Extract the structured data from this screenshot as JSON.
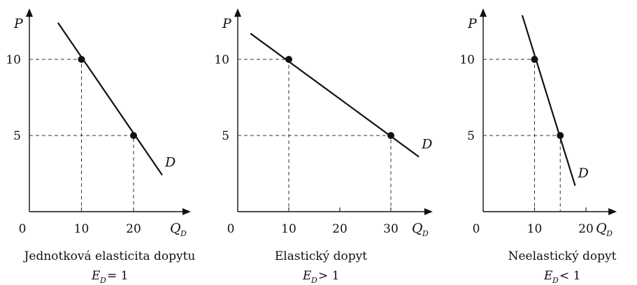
{
  "chart_data": [
    {
      "type": "line",
      "title": "Jednotková elasticita dopytu",
      "formula": {
        "symbol": "E",
        "subscript": "D",
        "relation": "= 1"
      },
      "ylabel": "P",
      "xlabel": {
        "symbol": "Q",
        "subscript": "D"
      },
      "origin_label": "0",
      "xticks": [
        {
          "value": 10,
          "label": "10"
        },
        {
          "value": 20,
          "label": "20"
        }
      ],
      "yticks": [
        {
          "value": 5,
          "label": "5"
        },
        {
          "value": 10,
          "label": "10"
        }
      ],
      "xlim": [
        0,
        31
      ],
      "ylim": [
        0,
        13
      ],
      "series": [
        {
          "name": "D",
          "line": [
            [
              5.5,
              12.4
            ],
            [
              25.5,
              2.4
            ]
          ]
        }
      ],
      "points": [
        [
          10,
          10
        ],
        [
          20,
          5
        ]
      ]
    },
    {
      "type": "line",
      "title": "Elastický dopyt",
      "formula": {
        "symbol": "E",
        "subscript": "D",
        "relation": "> 1"
      },
      "ylabel": "P",
      "xlabel": {
        "symbol": "Q",
        "subscript": "D"
      },
      "origin_label": "0",
      "xticks": [
        {
          "value": 10,
          "label": "10"
        },
        {
          "value": 20,
          "label": "20"
        },
        {
          "value": 30,
          "label": "30"
        }
      ],
      "yticks": [
        {
          "value": 5,
          "label": "5"
        },
        {
          "value": 10,
          "label": "10"
        }
      ],
      "xlim": [
        0,
        38.2
      ],
      "ylim": [
        0,
        13
      ],
      "series": [
        {
          "name": "D",
          "line": [
            [
              2.5,
              11.7
            ],
            [
              35.5,
              3.6
            ]
          ]
        }
      ],
      "points": [
        [
          10,
          10
        ],
        [
          30,
          5
        ]
      ]
    },
    {
      "type": "line",
      "title": "Neelastický dopyt",
      "formula": {
        "symbol": "E",
        "subscript": "D",
        "relation": "< 1"
      },
      "ylabel": "P",
      "xlabel": {
        "symbol": "Q",
        "subscript": "D"
      },
      "origin_label": "0",
      "xticks": [
        {
          "value": 10,
          "label": "10"
        },
        {
          "value": 20,
          "label": "20"
        }
      ],
      "yticks": [
        {
          "value": 5,
          "label": "5"
        },
        {
          "value": 10,
          "label": "10"
        }
      ],
      "xlim": [
        0,
        26
      ],
      "ylim": [
        0,
        13
      ],
      "series": [
        {
          "name": "D",
          "line": [
            [
              7.6,
              12.9
            ],
            [
              17.9,
              1.7
            ]
          ]
        }
      ],
      "points": [
        [
          10,
          10
        ],
        [
          15,
          5
        ]
      ]
    }
  ]
}
